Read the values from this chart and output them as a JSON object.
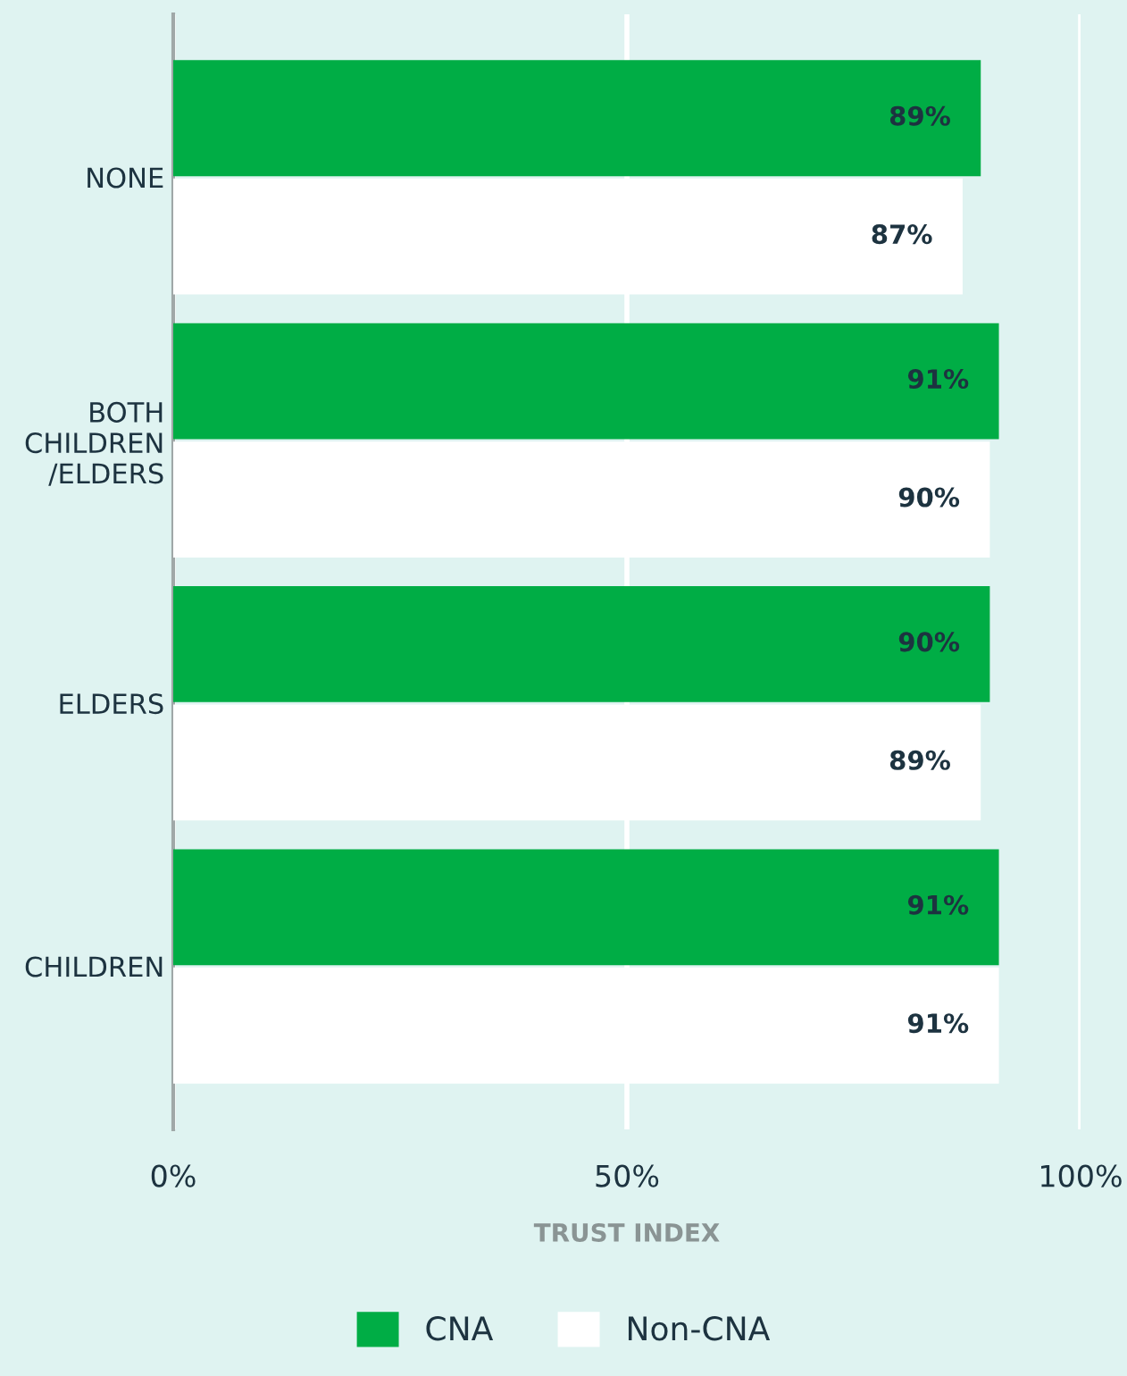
{
  "chart_data": {
    "type": "bar",
    "orientation": "horizontal",
    "categories": [
      "NONE",
      "BOTH\nCHILDREN\n/ELDERS",
      "ELDERS",
      "CHILDREN"
    ],
    "series": [
      {
        "name": "CNA",
        "color": "#00ad45",
        "values": [
          89,
          91,
          90,
          91
        ],
        "value_labels": [
          "89%",
          "91%",
          "90%",
          "91%"
        ]
      },
      {
        "name": "Non-CNA",
        "color": "#ffffff",
        "values": [
          87,
          90,
          89,
          91
        ],
        "value_labels": [
          "87%",
          "90%",
          "89%",
          "91%"
        ]
      }
    ],
    "xlim": [
      0,
      100
    ],
    "xticks": [
      {
        "value": 0,
        "label": "0%"
      },
      {
        "value": 50,
        "label": "50%"
      },
      {
        "value": 100,
        "label": "100%"
      }
    ],
    "xlabel": "TRUST INDEX",
    "grid": "x",
    "legend": "bottom"
  }
}
